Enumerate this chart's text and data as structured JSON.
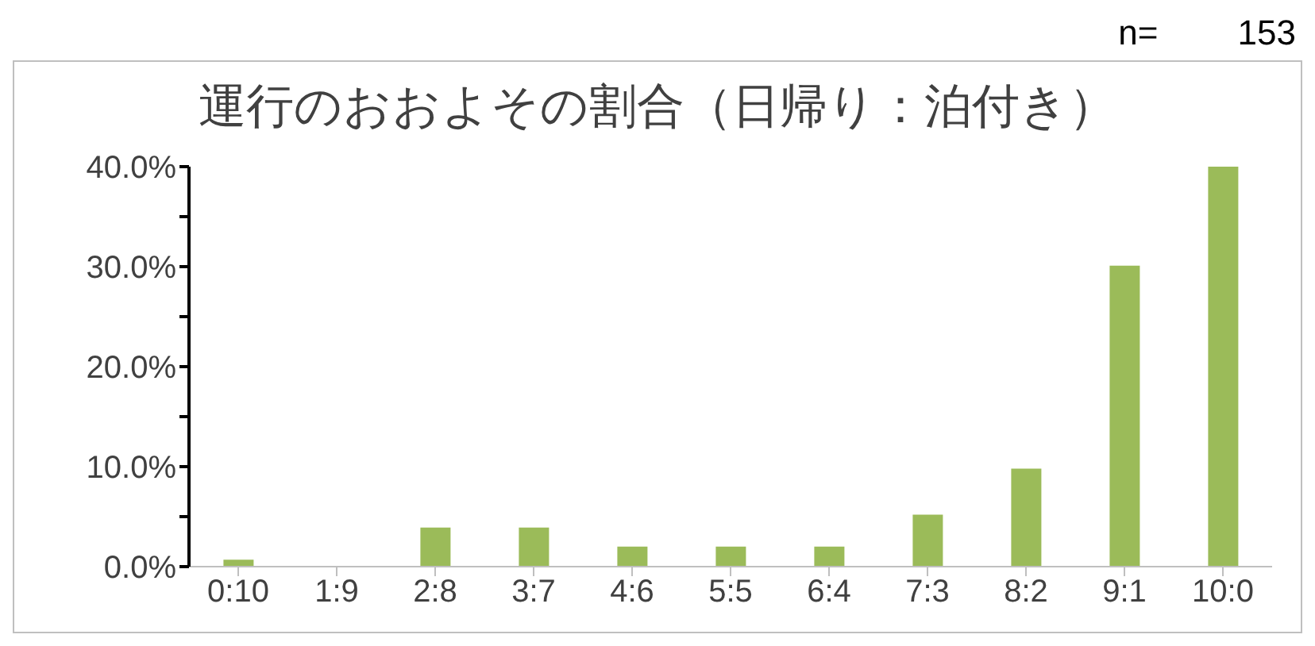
{
  "chart_data": {
    "type": "bar",
    "title": "運行のおおよその割合（日帰り：泊付き）",
    "categories": [
      "0:10",
      "1:9",
      "2:8",
      "3:7",
      "4:6",
      "5:5",
      "6:4",
      "7:3",
      "8:2",
      "9:1",
      "10:0"
    ],
    "values": [
      0.7,
      0,
      3.9,
      3.9,
      2,
      2,
      2,
      5.2,
      9.8,
      30.1,
      40
    ],
    "color": "#9bbb59",
    "ylim": [
      0,
      40
    ],
    "yticks": [
      {
        "value": 0,
        "label": "0.0%"
      },
      {
        "value": 5,
        "label": null
      },
      {
        "value": 10,
        "label": "10.0%"
      },
      {
        "value": 15,
        "label": null
      },
      {
        "value": 20,
        "label": "20.0%"
      },
      {
        "value": 25,
        "label": null
      },
      {
        "value": 30,
        "label": "30.0%"
      },
      {
        "value": 35,
        "label": null
      },
      {
        "value": 40,
        "label": "40.0%"
      }
    ],
    "annotations": [
      "n=　 　153"
    ],
    "grid": false
  }
}
